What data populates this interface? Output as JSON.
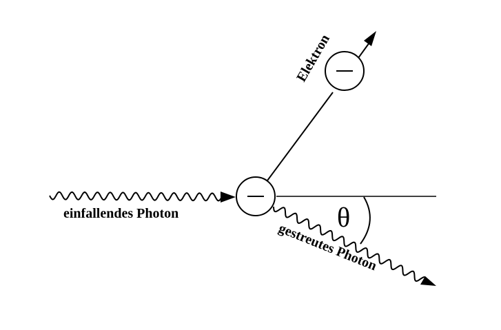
{
  "diagram": {
    "labels": {
      "incident_photon": "einfallendes Photon",
      "electron": "Elektron",
      "scattered_photon": "gestreutes Photon",
      "angle": "θ"
    },
    "colors": {
      "stroke": "#000000",
      "background": "#ffffff"
    },
    "icons": {
      "particle": "electron-minus-circle"
    }
  }
}
